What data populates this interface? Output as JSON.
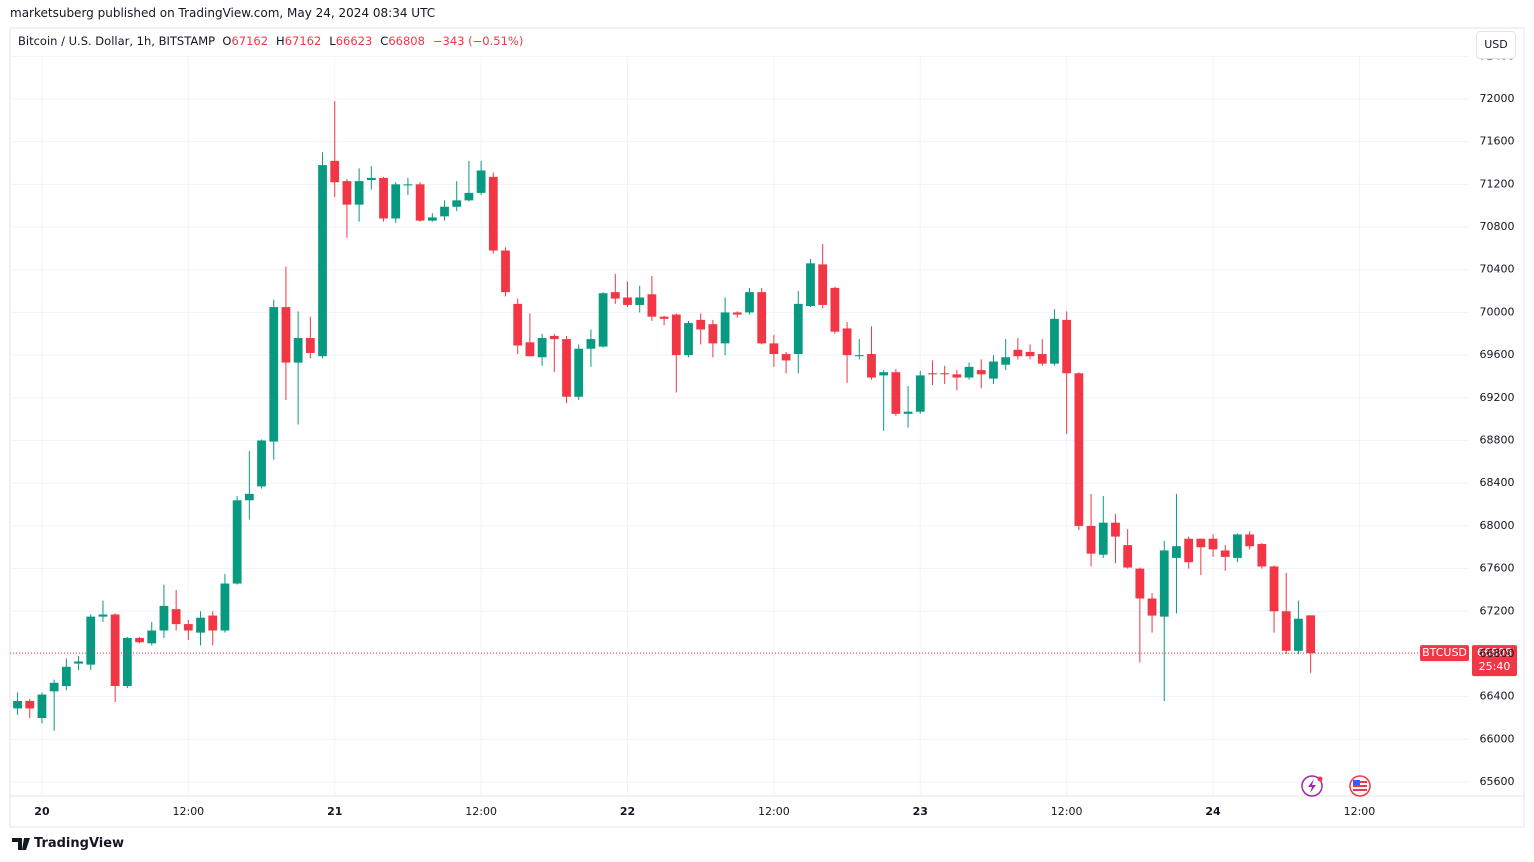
{
  "header": {
    "publisher": "marketsuberg published on TradingView.com, May 24, 2024 08:34 UTC"
  },
  "chart_data": {
    "type": "candlestick",
    "title": "Bitcoin / U.S. Dollar, 1h, BITSTAMP",
    "legend_values": [
      {
        "key": "O",
        "value": "67162"
      },
      {
        "key": "H",
        "value": "67162"
      },
      {
        "key": "L",
        "value": "66623"
      },
      {
        "key": "C",
        "value": "66808"
      }
    ],
    "change": "−343 (−0.51%)",
    "currency": "USD",
    "symbol_tag": "BTCUSD",
    "countdown": "25:40",
    "up_color": "#089981",
    "down_color": "#f23645",
    "grid": true,
    "x": [
      -2,
      -1,
      0,
      1,
      2,
      3,
      4,
      5,
      6,
      7,
      8,
      9,
      10,
      11,
      12,
      13,
      14,
      15,
      16,
      17,
      18,
      19,
      20,
      21,
      22,
      23,
      24,
      25,
      26,
      27,
      28,
      29,
      30,
      31,
      32,
      33,
      34,
      35,
      36,
      37,
      38,
      39,
      40,
      41,
      42,
      43,
      44,
      45,
      46,
      47,
      48,
      49,
      50,
      51,
      52,
      53,
      54,
      55,
      56,
      57,
      58,
      59,
      60,
      61,
      62,
      63,
      64,
      65,
      66,
      67,
      68,
      69,
      70,
      71,
      72,
      73,
      74,
      75,
      76,
      77,
      78,
      79,
      80,
      81,
      82,
      83,
      84,
      85,
      86,
      87,
      88,
      89,
      90,
      91,
      92,
      93,
      94,
      95,
      96,
      97,
      98,
      99,
      100,
      101,
      102,
      103,
      104
    ],
    "open": [
      66290,
      66360,
      66200,
      66450,
      66500,
      66710,
      66700,
      67150,
      67170,
      66500,
      66950,
      66900,
      67020,
      67220,
      67080,
      67000,
      67160,
      67020,
      67460,
      68240,
      68370,
      68790,
      70050,
      69530,
      69760,
      69590,
      71420,
      71230,
      71010,
      71240,
      71260,
      70880,
      71190,
      71200,
      70860,
      70900,
      70990,
      71050,
      71120,
      71270,
      70580,
      70080,
      69720,
      69580,
      69780,
      69750,
      69210,
      69660,
      69680,
      70190,
      70140,
      70070,
      70170,
      69960,
      69980,
      69600,
      69930,
      69890,
      69710,
      70000,
      70000,
      70190,
      69710,
      69610,
      69610,
      70060,
      70450,
      70230,
      69850,
      69590,
      69610,
      69410,
      69440,
      69050,
      69070,
      69430,
      69430,
      69420,
      69390,
      69460,
      69380,
      69510,
      69650,
      69630,
      69610,
      69520,
      69930,
      69430,
      68000,
      67730,
      68030,
      67820,
      67600,
      67320,
      67150,
      67700,
      67880,
      67880,
      67880,
      67770,
      67700,
      67920,
      67830,
      67620,
      67200,
      66830,
      67162
    ],
    "high": [
      66440,
      66380,
      66440,
      66560,
      66760,
      66780,
      67170,
      67300,
      67180,
      66960,
      66960,
      67100,
      67450,
      67400,
      67120,
      67200,
      67200,
      67550,
      68280,
      68700,
      68810,
      70120,
      70430,
      70010,
      69960,
      71500,
      71980,
      71250,
      71350,
      71370,
      71270,
      71220,
      71260,
      71220,
      70930,
      71050,
      71230,
      71420,
      71420,
      71310,
      70610,
      70130,
      69990,
      69800,
      69800,
      69780,
      69700,
      69840,
      70190,
      70360,
      70290,
      70250,
      70340,
      69970,
      69990,
      69920,
      69990,
      69930,
      70140,
      70010,
      70230,
      70230,
      69790,
      69630,
      70200,
      70500,
      70640,
      70240,
      69910,
      69750,
      69870,
      69460,
      69470,
      69310,
      69450,
      69550,
      69500,
      69460,
      69530,
      69560,
      69600,
      69750,
      69760,
      69700,
      69750,
      70030,
      70010,
      69440,
      68300,
      68280,
      68110,
      67970,
      67610,
      67370,
      67860,
      68300,
      67900,
      67880,
      67920,
      67820,
      67930,
      67950,
      67840,
      67630,
      67560,
      67300,
      67162
    ],
    "low": [
      66230,
      66200,
      66150,
      66080,
      66460,
      66650,
      66650,
      67100,
      66350,
      66480,
      66900,
      66880,
      66950,
      67020,
      66930,
      66880,
      66880,
      67000,
      67450,
      68060,
      68350,
      68620,
      69180,
      68950,
      69570,
      69570,
      71080,
      70700,
      70850,
      71150,
      70850,
      70840,
      71100,
      70850,
      70850,
      70860,
      70950,
      71040,
      71100,
      70550,
      70150,
      69610,
      69590,
      69500,
      69440,
      69150,
      69180,
      69490,
      69670,
      70080,
      70050,
      70000,
      69920,
      69880,
      69250,
      69580,
      69700,
      69580,
      69600,
      69950,
      69980,
      69700,
      69490,
      69430,
      69430,
      70050,
      70040,
      69800,
      69340,
      69560,
      69370,
      68890,
      69030,
      68920,
      69050,
      69320,
      69330,
      69270,
      69370,
      69290,
      69330,
      69460,
      69560,
      69560,
      69500,
      69500,
      68860,
      67960,
      67620,
      67700,
      67650,
      67600,
      66720,
      67000,
      66360,
      67180,
      67600,
      67540,
      67710,
      67580,
      67660,
      67780,
      67600,
      67000,
      66800,
      66800,
      66623
    ],
    "close": [
      66360,
      66290,
      66420,
      66530,
      66680,
      66730,
      67150,
      67170,
      66500,
      66950,
      66910,
      67020,
      67250,
      67080,
      67020,
      67140,
      67020,
      67460,
      68240,
      68300,
      68800,
      70050,
      69530,
      69760,
      69620,
      71380,
      71220,
      71010,
      71230,
      71260,
      70880,
      71200,
      71200,
      70860,
      70890,
      70990,
      71050,
      71120,
      71330,
      70580,
      70190,
      69690,
      69590,
      69760,
      69750,
      69210,
      69660,
      69750,
      70180,
      70130,
      70070,
      70140,
      69960,
      69940,
      69600,
      69900,
      69840,
      69710,
      70000,
      69980,
      70190,
      69710,
      69610,
      69550,
      70080,
      70460,
      70070,
      69820,
      69600,
      69600,
      69390,
      69440,
      69050,
      69070,
      69410,
      69420,
      69420,
      69390,
      69490,
      69420,
      69540,
      69580,
      69590,
      69590,
      69520,
      69940,
      69430,
      68000,
      67740,
      68030,
      67900,
      67610,
      67320,
      67160,
      67770,
      67810,
      67660,
      67800,
      67780,
      67710,
      67920,
      67810,
      67620,
      67200,
      66830,
      67130,
      66808
    ],
    "xlim": [
      -2.62,
      116.9
    ],
    "xticks": [
      {
        "value": 0,
        "label": "20"
      },
      {
        "value": 12,
        "label": "12:00"
      },
      {
        "value": 24,
        "label": "21"
      },
      {
        "value": 36,
        "label": "12:00"
      },
      {
        "value": 48,
        "label": "22"
      },
      {
        "value": 60,
        "label": "12:00"
      },
      {
        "value": 72,
        "label": "23"
      },
      {
        "value": 84,
        "label": "12:00"
      },
      {
        "value": 96,
        "label": "24"
      },
      {
        "value": 108,
        "label": "12:00"
      }
    ],
    "ylim": [
      65432,
      72393
    ],
    "yticks": [
      65600,
      66000,
      66400,
      66800,
      67200,
      67600,
      68000,
      68400,
      68800,
      69200,
      69600,
      70000,
      70400,
      70800,
      71200,
      71600,
      72000,
      72400
    ]
  },
  "footer": {
    "brand": "TradingView"
  }
}
